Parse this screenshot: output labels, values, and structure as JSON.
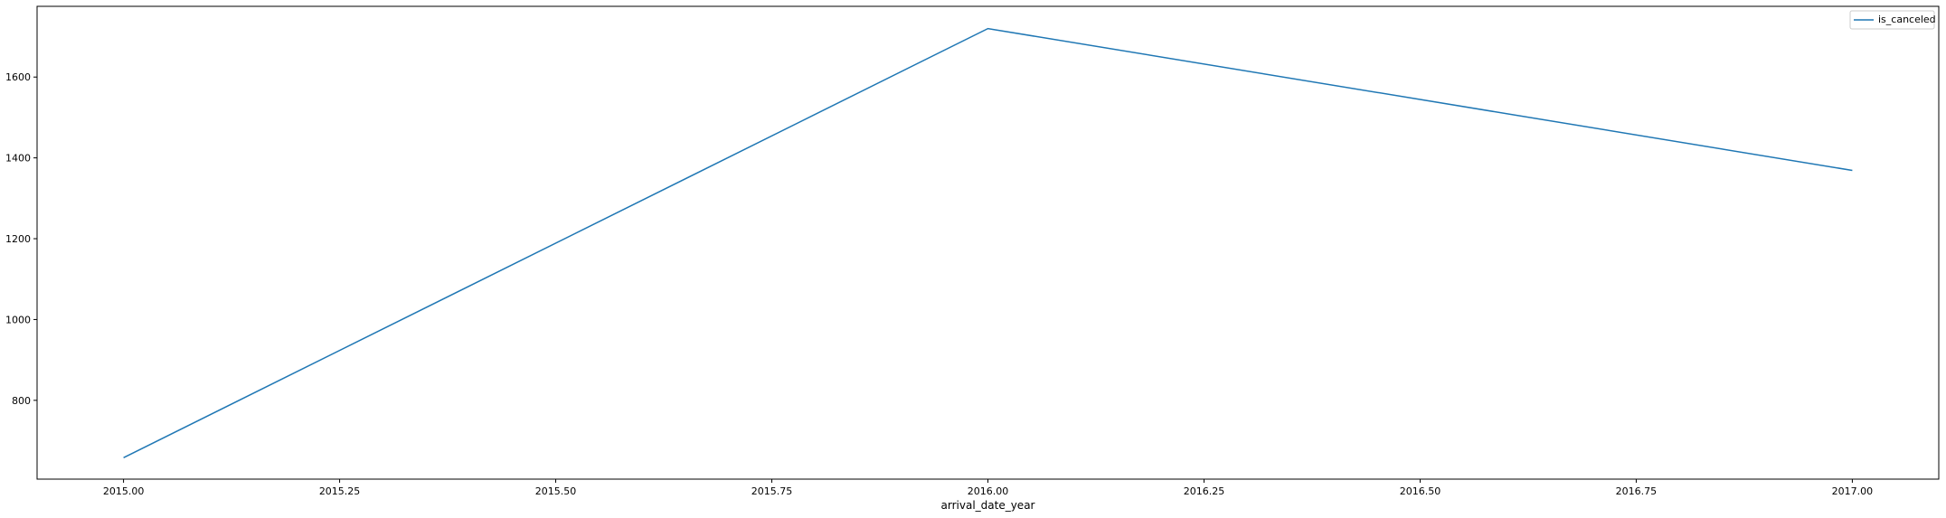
{
  "chart_data": {
    "type": "line",
    "title": "",
    "xlabel": "arrival_date_year",
    "ylabel": "",
    "xlim": [
      2014.9,
      2017.1
    ],
    "ylim": [
      605,
      1775
    ],
    "x_ticks": [
      2015.0,
      2015.25,
      2015.5,
      2015.75,
      2016.0,
      2016.25,
      2016.5,
      2016.75,
      2017.0
    ],
    "x_tick_labels": [
      "2015.00",
      "2015.25",
      "2015.50",
      "2015.75",
      "2016.00",
      "2016.25",
      "2016.50",
      "2016.75",
      "2017.00"
    ],
    "y_ticks": [
      800,
      1000,
      1200,
      1400,
      1600
    ],
    "y_tick_labels": [
      "800",
      "1000",
      "1200",
      "1400",
      "1600"
    ],
    "grid": false,
    "legend_position": "top-right",
    "series": [
      {
        "name": "is_canceled",
        "color": "#1f77b4",
        "x": [
          2015,
          2016,
          2017
        ],
        "y": [
          658,
          1720,
          1369
        ]
      }
    ]
  }
}
